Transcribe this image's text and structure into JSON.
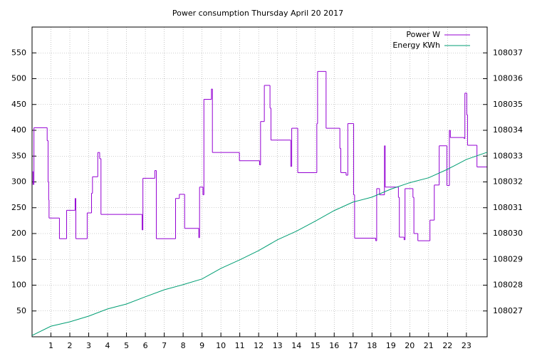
{
  "chart_data": {
    "type": "line",
    "title": "Power consumption Thursday April 20 2017",
    "xlim": [
      0,
      24.1
    ],
    "xticks": [
      1,
      2,
      3,
      4,
      5,
      6,
      7,
      8,
      9,
      10,
      11,
      12,
      13,
      14,
      15,
      16,
      17,
      18,
      19,
      20,
      21,
      22,
      23
    ],
    "ylim": [
      0,
      600
    ],
    "yticks": [
      50,
      100,
      150,
      200,
      250,
      300,
      350,
      400,
      450,
      500,
      550
    ],
    "y2lim": [
      108026,
      108038
    ],
    "y2ticks": [
      108027,
      108028,
      108029,
      108030,
      108031,
      108032,
      108033,
      108034,
      108035,
      108036,
      108037
    ],
    "grid": true,
    "legend": "top right",
    "series": [
      {
        "name": "Power W",
        "color": "#9400d3",
        "step": true,
        "x": [
          0,
          0.05,
          0.1,
          0.8,
          0.85,
          0.88,
          0.9,
          1.45,
          1.83,
          2.28,
          2.32,
          2.92,
          3.15,
          3.2,
          3.48,
          3.58,
          3.65,
          5.83,
          5.87,
          6.5,
          6.58,
          7.6,
          7.8,
          8.08,
          8.83,
          8.87,
          9.05,
          9.1,
          9.5,
          9.55,
          10.98,
          12.05,
          12.1,
          12.3,
          12.6,
          12.65,
          13.7,
          13.75,
          14.07,
          15.08,
          15.12,
          15.57,
          16.3,
          16.35,
          16.63,
          16.72,
          17.03,
          17.08,
          18.2,
          18.25,
          18.4,
          18.66,
          18.7,
          19.4,
          19.45,
          19.7,
          19.75,
          20.17,
          20.22,
          20.43,
          21.07,
          21.3,
          21.56,
          21.97,
          22.1,
          22.15,
          22.88,
          22.92,
          23.02,
          23.06,
          23.56,
          24.08
        ],
        "values": [
          320,
          295,
          405,
          380,
          300,
          265,
          230,
          190,
          245,
          268,
          190,
          240,
          278,
          310,
          357,
          345,
          237,
          207,
          307,
          322,
          190,
          268,
          276,
          210,
          192,
          290,
          275,
          460,
          480,
          357,
          341,
          333,
          417,
          487,
          443,
          381,
          330,
          404,
          318,
          413,
          514,
          404,
          365,
          318,
          313,
          413,
          275,
          191,
          186,
          287,
          275,
          370,
          290,
          270,
          193,
          188,
          287,
          270,
          200,
          186,
          226,
          294,
          370,
          293,
          400,
          386,
          384,
          472,
          430,
          371,
          329,
          329
        ]
      },
      {
        "name": "Energy KWh",
        "color": "#009e73",
        "axis": "y2",
        "x": [
          0,
          1,
          2,
          3,
          4,
          5,
          6,
          7,
          8,
          9,
          10,
          11,
          12,
          13,
          14,
          15,
          16,
          17,
          18,
          19,
          20,
          21,
          22,
          23,
          24.1
        ],
        "values": [
          108026.05,
          108026.41,
          108026.58,
          108026.8,
          108027.08,
          108027.27,
          108027.55,
          108027.82,
          108028.02,
          108028.24,
          108028.65,
          108028.98,
          108029.34,
          108029.76,
          108030.09,
          108030.48,
          108030.89,
          108031.22,
          108031.41,
          108031.72,
          108031.97,
          108032.16,
          108032.49,
          108032.87,
          108033.15
        ]
      }
    ]
  }
}
